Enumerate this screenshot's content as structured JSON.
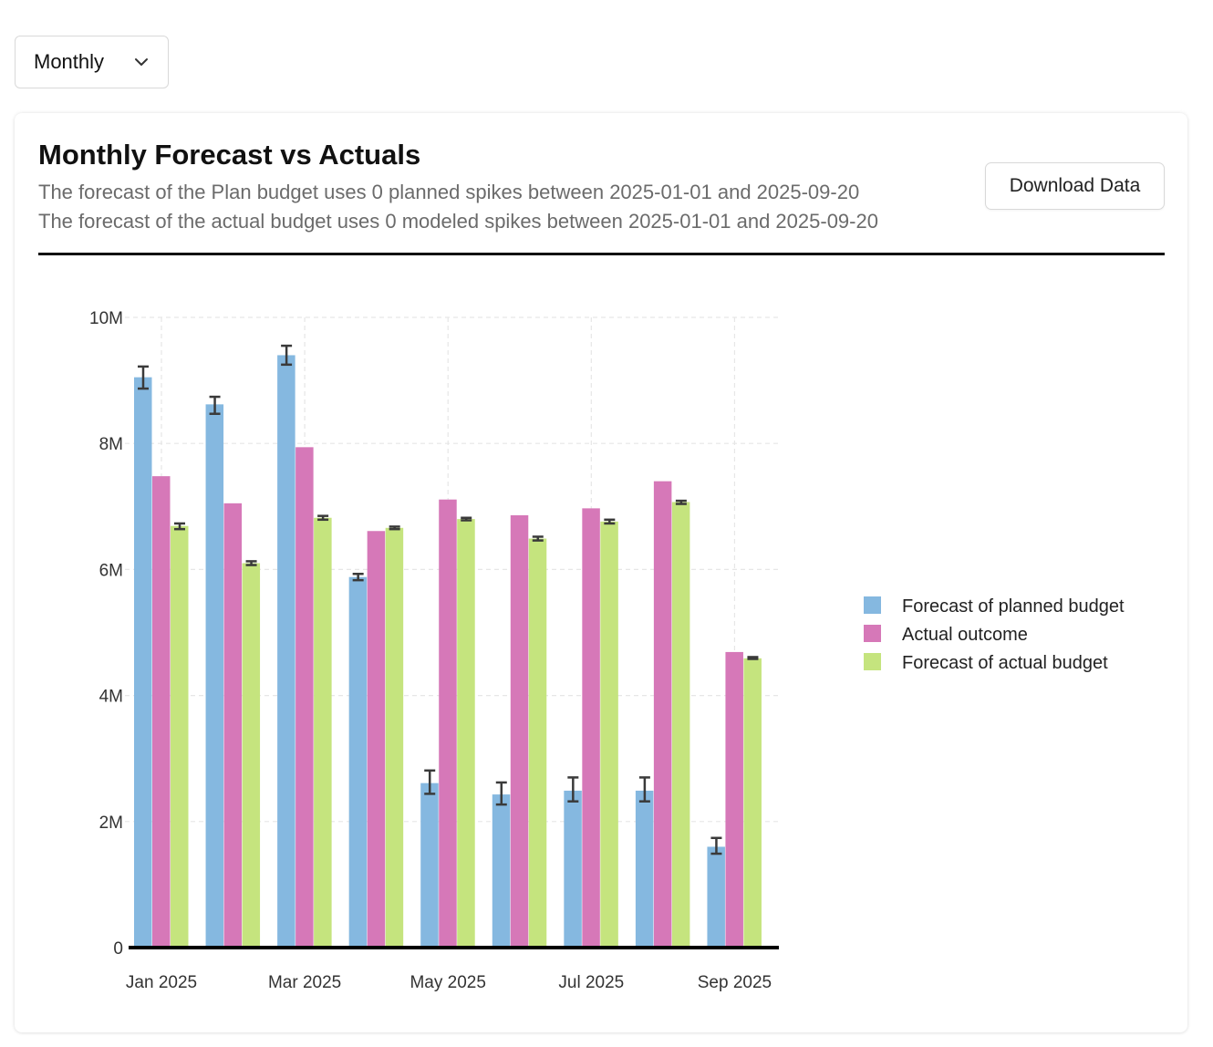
{
  "controls": {
    "period_select": {
      "value": "Monthly",
      "icon": "chevron-down-icon"
    }
  },
  "card": {
    "title": "Monthly Forecast vs Actuals",
    "subtitle_1": "The forecast of the Plan budget uses 0 planned spikes between 2025-01-01 and 2025-09-20",
    "subtitle_2": "The forecast of the actual budget uses 0 modeled spikes between 2025-01-01 and 2025-09-20",
    "download_label": "Download Data"
  },
  "colors": {
    "forecast_planned": "#85b8e0",
    "actual": "#d678b8",
    "forecast_actual": "#c5e47e",
    "error_bar": "#3a3a3a",
    "grid": "#e6e6e6"
  },
  "chart_data": {
    "type": "bar",
    "title": "",
    "xlabel": "",
    "ylabel": "",
    "ylim": [
      0,
      10000000
    ],
    "y_ticks": [
      0,
      2000000,
      4000000,
      6000000,
      8000000,
      10000000
    ],
    "y_tick_labels": [
      "0",
      "2M",
      "4M",
      "6M",
      "8M",
      "10M"
    ],
    "x_tick_labels": [
      "Jan 2025",
      "Mar 2025",
      "May 2025",
      "Jul 2025",
      "Sep 2025"
    ],
    "categories": [
      "Jan 2025",
      "Feb 2025",
      "Mar 2025",
      "Apr 2025",
      "May 2025",
      "Jun 2025",
      "Jul 2025",
      "Aug 2025",
      "Sep 2025"
    ],
    "grid": true,
    "legend_position": "right",
    "series": [
      {
        "name": "Forecast of planned budget",
        "values": [
          9050000,
          8620000,
          9400000,
          5880000,
          2610000,
          2430000,
          2490000,
          2490000,
          1600000
        ],
        "error_low": [
          8870000,
          8470000,
          9250000,
          5830000,
          2440000,
          2270000,
          2320000,
          2320000,
          1490000
        ],
        "error_high": [
          9220000,
          8740000,
          9550000,
          5930000,
          2810000,
          2620000,
          2700000,
          2700000,
          1740000
        ]
      },
      {
        "name": "Actual outcome",
        "values": [
          7480000,
          7050000,
          7940000,
          6610000,
          7110000,
          6860000,
          6970000,
          7400000,
          4690000
        ]
      },
      {
        "name": "Forecast of actual budget",
        "values": [
          6690000,
          6100000,
          6820000,
          6660000,
          6800000,
          6490000,
          6760000,
          7070000,
          4590000
        ],
        "error_low": [
          6640000,
          6070000,
          6790000,
          6640000,
          6780000,
          6460000,
          6730000,
          7040000,
          4580000
        ],
        "error_high": [
          6730000,
          6130000,
          6850000,
          6680000,
          6820000,
          6520000,
          6790000,
          7090000,
          4610000
        ]
      }
    ]
  }
}
